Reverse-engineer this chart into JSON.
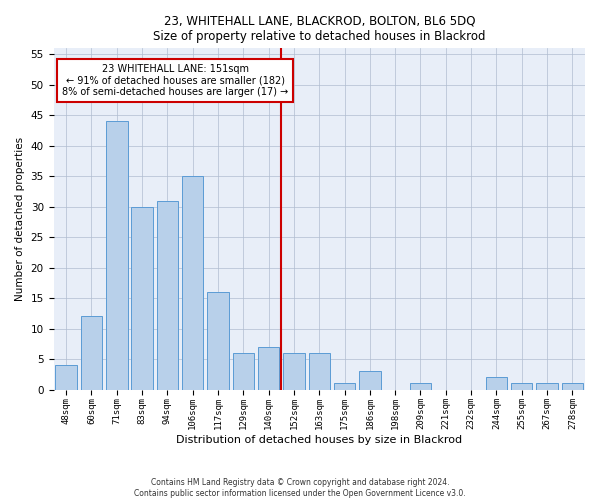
{
  "title1": "23, WHITEHALL LANE, BLACKROD, BOLTON, BL6 5DQ",
  "title2": "Size of property relative to detached houses in Blackrod",
  "xlabel": "Distribution of detached houses by size in Blackrod",
  "ylabel": "Number of detached properties",
  "categories": [
    "48sqm",
    "60sqm",
    "71sqm",
    "83sqm",
    "94sqm",
    "106sqm",
    "117sqm",
    "129sqm",
    "140sqm",
    "152sqm",
    "163sqm",
    "175sqm",
    "186sqm",
    "198sqm",
    "209sqm",
    "221sqm",
    "232sqm",
    "244sqm",
    "255sqm",
    "267sqm",
    "278sqm"
  ],
  "values": [
    4,
    12,
    44,
    30,
    31,
    35,
    16,
    6,
    7,
    6,
    6,
    1,
    3,
    0,
    1,
    0,
    0,
    2,
    1,
    1,
    1
  ],
  "bar_color": "#b8d0ea",
  "bar_edge_color": "#5b9bd5",
  "vline_color": "#cc0000",
  "annotation_title": "23 WHITEHALL LANE: 151sqm",
  "annotation_line1": "← 91% of detached houses are smaller (182)",
  "annotation_line2": "8% of semi-detached houses are larger (17) →",
  "annotation_box_color": "#ffffff",
  "annotation_box_edge": "#cc0000",
  "ylim": [
    0,
    56
  ],
  "yticks": [
    0,
    5,
    10,
    15,
    20,
    25,
    30,
    35,
    40,
    45,
    50,
    55
  ],
  "background_color": "#e8eef8",
  "footer1": "Contains HM Land Registry data © Crown copyright and database right 2024.",
  "footer2": "Contains public sector information licensed under the Open Government Licence v3.0."
}
